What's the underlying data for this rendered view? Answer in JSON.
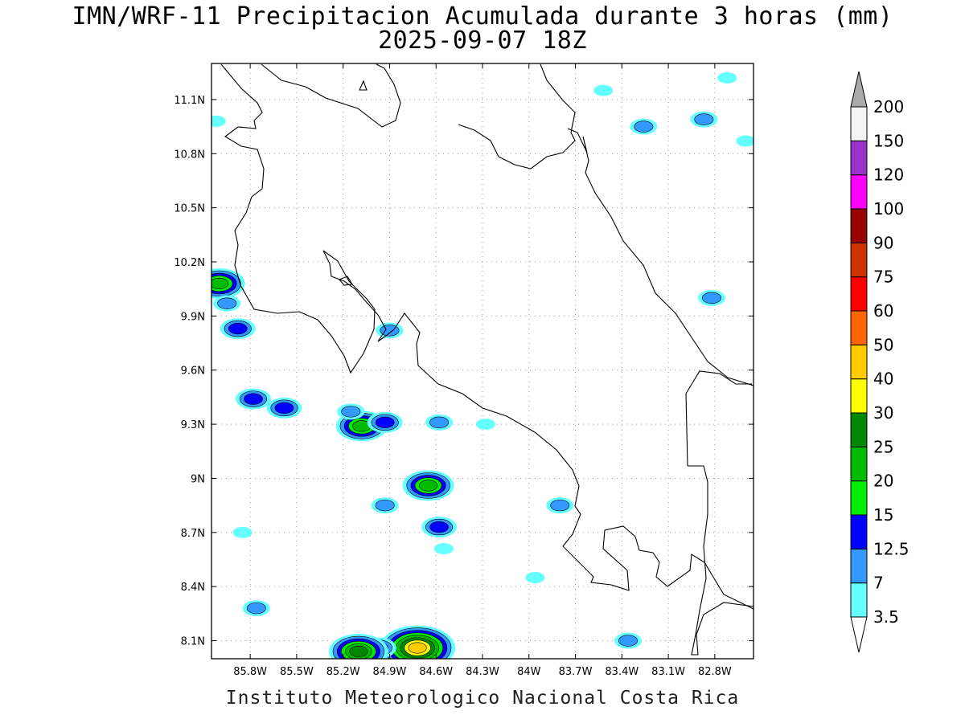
{
  "title": {
    "line1": "IMN/WRF-11 Precipitacion Acumulada durante 3 horas (mm)",
    "line2": "2025-09-07 18Z"
  },
  "footer": "Instituto Meteorologico Nacional Costa Rica",
  "map": {
    "lon_range": [
      -86.05,
      -82.55
    ],
    "lat_range": [
      8.0,
      11.3
    ],
    "lon_ticks": [
      {
        "value": -85.8,
        "label": "85.8W"
      },
      {
        "value": -85.5,
        "label": "85.5W"
      },
      {
        "value": -85.2,
        "label": "85.2W"
      },
      {
        "value": -84.9,
        "label": "84.9W"
      },
      {
        "value": -84.6,
        "label": "84.6W"
      },
      {
        "value": -84.3,
        "label": "84.3W"
      },
      {
        "value": -84.0,
        "label": "84W"
      },
      {
        "value": -83.7,
        "label": "83.7W"
      },
      {
        "value": -83.4,
        "label": "83.4W"
      },
      {
        "value": -83.1,
        "label": "83.1W"
      },
      {
        "value": -82.8,
        "label": "82.8W"
      }
    ],
    "lat_ticks": [
      {
        "value": 11.1,
        "label": "11.1N"
      },
      {
        "value": 10.8,
        "label": "10.8N"
      },
      {
        "value": 10.5,
        "label": "10.5N"
      },
      {
        "value": 10.2,
        "label": "10.2N"
      },
      {
        "value": 9.9,
        "label": "9.9N"
      },
      {
        "value": 9.6,
        "label": "9.6N"
      },
      {
        "value": 9.3,
        "label": "9.3N"
      },
      {
        "value": 9.0,
        "label": "9N"
      },
      {
        "value": 8.7,
        "label": "8.7N"
      },
      {
        "value": 8.4,
        "label": "8.4N"
      },
      {
        "value": 8.1,
        "label": "8.1N"
      }
    ],
    "grid": "dotted"
  },
  "colorbar": {
    "unit": "mm",
    "levels": [
      "3.5",
      "7",
      "12.5",
      "15",
      "20",
      "25",
      "30",
      "40",
      "50",
      "60",
      "75",
      "90",
      "100",
      "120",
      "150",
      "200"
    ],
    "colors": [
      "#66ffff",
      "#3399ff",
      "#0000ff",
      "#00ee00",
      "#00bb00",
      "#008800",
      "#ffff00",
      "#ffcc00",
      "#ff6600",
      "#ff0000",
      "#cc3300",
      "#990000",
      "#ff00ff",
      "#9933cc",
      "#f4f4f4"
    ],
    "under_color": "#ffffff",
    "over_color": "#aaaaaa"
  },
  "precip_cells": [
    {
      "lon": -86.0,
      "lat": 10.08,
      "max_mm": 20
    },
    {
      "lon": -85.95,
      "lat": 9.97,
      "max_mm": 7
    },
    {
      "lon": -85.88,
      "lat": 9.83,
      "max_mm": 12.5
    },
    {
      "lon": -86.02,
      "lat": 10.98,
      "max_mm": 3.5
    },
    {
      "lon": -85.78,
      "lat": 9.44,
      "max_mm": 12.5
    },
    {
      "lon": -85.58,
      "lat": 9.39,
      "max_mm": 12.5
    },
    {
      "lon": -85.08,
      "lat": 9.29,
      "max_mm": 20
    },
    {
      "lon": -85.15,
      "lat": 9.37,
      "max_mm": 7
    },
    {
      "lon": -84.93,
      "lat": 9.31,
      "max_mm": 12.5
    },
    {
      "lon": -84.65,
      "lat": 8.96,
      "max_mm": 20
    },
    {
      "lon": -84.58,
      "lat": 8.73,
      "max_mm": 12.5
    },
    {
      "lon": -84.58,
      "lat": 9.31,
      "max_mm": 7
    },
    {
      "lon": -84.55,
      "lat": 8.61,
      "max_mm": 3.5
    },
    {
      "lon": -84.93,
      "lat": 8.85,
      "max_mm": 7
    },
    {
      "lon": -83.8,
      "lat": 8.85,
      "max_mm": 7
    },
    {
      "lon": -84.72,
      "lat": 8.06,
      "max_mm": 40
    },
    {
      "lon": -84.97,
      "lat": 8.06,
      "max_mm": 12.5
    },
    {
      "lon": -85.1,
      "lat": 8.04,
      "max_mm": 25
    },
    {
      "lon": -85.76,
      "lat": 8.28,
      "max_mm": 7
    },
    {
      "lon": -83.36,
      "lat": 8.1,
      "max_mm": 7
    },
    {
      "lon": -83.26,
      "lat": 10.95,
      "max_mm": 7
    },
    {
      "lon": -82.87,
      "lat": 10.99,
      "max_mm": 7
    },
    {
      "lon": -83.52,
      "lat": 11.15,
      "max_mm": 3.5
    },
    {
      "lon": -82.72,
      "lat": 11.22,
      "max_mm": 3.5
    },
    {
      "lon": -82.6,
      "lat": 10.87,
      "max_mm": 3.5
    },
    {
      "lon": -82.82,
      "lat": 10.0,
      "max_mm": 7
    },
    {
      "lon": -84.9,
      "lat": 9.82,
      "max_mm": 7
    },
    {
      "lon": -85.85,
      "lat": 8.7,
      "max_mm": 3.5
    },
    {
      "lon": -84.28,
      "lat": 9.3,
      "max_mm": 3.5
    },
    {
      "lon": -83.96,
      "lat": 8.45,
      "max_mm": 3.5
    }
  ]
}
